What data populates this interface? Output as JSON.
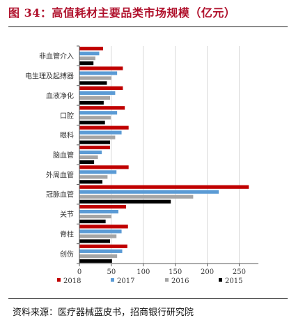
{
  "title": "图 34：高值耗材主要品类市场规模（亿元）",
  "source": "资料来源：医疗器械蓝皮书，招商银行研究院",
  "colors": {
    "title": "#b0112c"
  },
  "chart_data": {
    "type": "bar",
    "orientation": "horizontal",
    "categories": [
      "非血管介入",
      "电生理及起搏器",
      "血液净化",
      "口腔",
      "眼科",
      "脑血管",
      "外周血管",
      "冠脉血管",
      "关节",
      "脊柱",
      "创伤"
    ],
    "series": [
      {
        "name": "2018",
        "color": "#c00000",
        "values": [
          37,
          68,
          68,
          71,
          77,
          48,
          77,
          265,
          73,
          76,
          75
        ]
      },
      {
        "name": "2017",
        "color": "#5b9bd5",
        "values": [
          31,
          59,
          56,
          59,
          66,
          35,
          58,
          218,
          61,
          66,
          67
        ]
      },
      {
        "name": "2016",
        "color": "#a5a5a5",
        "values": [
          25,
          50,
          48,
          49,
          56,
          29,
          44,
          178,
          50,
          58,
          59
        ]
      },
      {
        "name": "2015",
        "color": "#000000",
        "values": [
          22,
          43,
          38,
          40,
          48,
          23,
          36,
          143,
          41,
          48,
          51
        ]
      }
    ],
    "xlim": [
      0,
      280
    ],
    "xticks": [
      0,
      50,
      100,
      150,
      200,
      250
    ],
    "grid": true,
    "legend_position": "bottom"
  }
}
